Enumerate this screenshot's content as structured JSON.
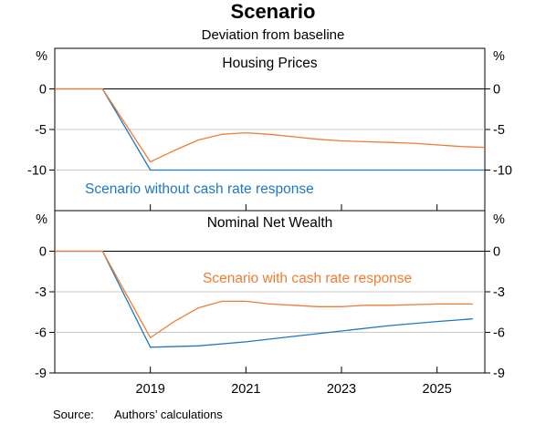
{
  "title": "Scenario",
  "subtitle": "Deviation from baseline",
  "source_label": "Source:",
  "source_text": "Authors’ calculations",
  "colors": {
    "blue": "#1f77c4",
    "orange": "#f07c33",
    "grid": "#c8c8c8",
    "zero": "#000000"
  },
  "chart_data": [
    {
      "type": "line",
      "title": "Housing Prices",
      "unit": "%",
      "ylim": [
        -15,
        5
      ],
      "yticks": [
        0,
        -5,
        -10
      ],
      "ytick_labels": [
        "0",
        "-5",
        "-10"
      ],
      "xlim": [
        2017.0,
        2026.0
      ],
      "xticks": [
        2019,
        2021,
        2023,
        2025
      ],
      "annotation": {
        "text": "Scenario without cash rate response",
        "color": "blue"
      },
      "series": [
        {
          "key": "without",
          "color": "blue",
          "x": [
            2017.0,
            2018.0,
            2019.0,
            2026.0
          ],
          "values": [
            0,
            0,
            -10,
            -10
          ]
        },
        {
          "key": "with",
          "color": "orange",
          "x": [
            2017.0,
            2018.0,
            2019.0,
            2019.5,
            2020.0,
            2020.5,
            2021.0,
            2021.5,
            2022.0,
            2022.5,
            2023.0,
            2023.5,
            2024.0,
            2024.5,
            2025.0,
            2025.5,
            2026.0
          ],
          "values": [
            0,
            0,
            -9.0,
            -7.6,
            -6.3,
            -5.6,
            -5.4,
            -5.6,
            -5.9,
            -6.2,
            -6.4,
            -6.5,
            -6.6,
            -6.7,
            -6.9,
            -7.1,
            -7.2
          ]
        }
      ]
    },
    {
      "type": "line",
      "title": "Nominal Net Wealth",
      "unit": "%",
      "ylim": [
        -9,
        3
      ],
      "yticks": [
        0,
        -3,
        -6,
        -9
      ],
      "ytick_labels": [
        "0",
        "-3",
        "-6",
        "-9"
      ],
      "xlim": [
        2017.0,
        2026.0
      ],
      "xticks": [
        2019,
        2021,
        2023,
        2025
      ],
      "xtick_labels": [
        "2019",
        "2021",
        "2023",
        "2025"
      ],
      "annotation": {
        "text": "Scenario with cash rate response",
        "color": "orange"
      },
      "series": [
        {
          "key": "without",
          "color": "blue",
          "x": [
            2017.0,
            2018.0,
            2019.0,
            2020.0,
            2021.0,
            2022.0,
            2023.0,
            2024.0,
            2025.0,
            2025.75
          ],
          "values": [
            0,
            0,
            -7.1,
            -7.0,
            -6.7,
            -6.3,
            -5.9,
            -5.5,
            -5.2,
            -5.0
          ]
        },
        {
          "key": "with",
          "color": "orange",
          "x": [
            2017.0,
            2018.0,
            2019.0,
            2019.5,
            2020.0,
            2020.5,
            2021.0,
            2021.5,
            2022.0,
            2022.5,
            2023.0,
            2023.5,
            2024.0,
            2024.5,
            2025.0,
            2025.75
          ],
          "values": [
            0,
            0,
            -6.4,
            -5.2,
            -4.2,
            -3.7,
            -3.7,
            -3.9,
            -4.0,
            -4.1,
            -4.1,
            -4.0,
            -4.0,
            -3.95,
            -3.9,
            -3.9
          ]
        }
      ]
    }
  ]
}
